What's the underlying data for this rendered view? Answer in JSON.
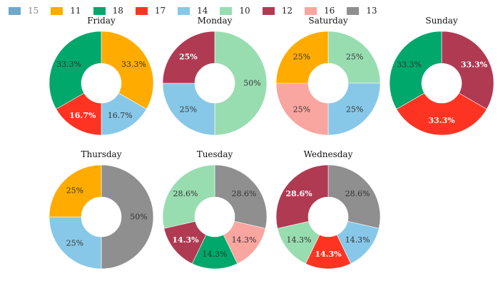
{
  "legend": [
    {
      "label": "15",
      "color": "#6fa8c8",
      "dimmed": true
    },
    {
      "label": "11",
      "color": "#ffab00",
      "dimmed": false
    },
    {
      "label": "18",
      "color": "#00a86b",
      "dimmed": false
    },
    {
      "label": "17",
      "color": "#ff3322",
      "dimmed": false
    },
    {
      "label": "14",
      "color": "#87c8e8",
      "dimmed": false
    },
    {
      "label": "10",
      "color": "#98ddb0",
      "dimmed": false
    },
    {
      "label": "12",
      "color": "#b03a52",
      "dimmed": false
    },
    {
      "label": "16",
      "color": "#f9a5a0",
      "dimmed": false
    },
    {
      "label": "13",
      "color": "#8f8f8f",
      "dimmed": false
    }
  ],
  "chart_data": [
    {
      "type": "pie",
      "donut": true,
      "title": "Friday",
      "slices": [
        {
          "category": "11",
          "value": 33.3,
          "label": "33.3%",
          "bold": false
        },
        {
          "category": "14",
          "value": 16.7,
          "label": "16.7%",
          "bold": false
        },
        {
          "category": "17",
          "value": 16.7,
          "label": "16.7%",
          "bold": true
        },
        {
          "category": "18",
          "value": 33.3,
          "label": "33.3%",
          "bold": false
        }
      ]
    },
    {
      "type": "pie",
      "donut": true,
      "title": "Monday",
      "slices": [
        {
          "category": "10",
          "value": 50,
          "label": "50%",
          "bold": false
        },
        {
          "category": "14",
          "value": 25,
          "label": "25%",
          "bold": false
        },
        {
          "category": "12",
          "value": 25,
          "label": "25%",
          "bold": true
        }
      ]
    },
    {
      "type": "pie",
      "donut": true,
      "title": "Saturday",
      "slices": [
        {
          "category": "10",
          "value": 25,
          "label": "25%",
          "bold": false
        },
        {
          "category": "14",
          "value": 25,
          "label": "25%",
          "bold": false
        },
        {
          "category": "16",
          "value": 25,
          "label": "25%",
          "bold": false
        },
        {
          "category": "11",
          "value": 25,
          "label": "25%",
          "bold": false
        }
      ]
    },
    {
      "type": "pie",
      "donut": true,
      "title": "Sunday",
      "slices": [
        {
          "category": "12",
          "value": 33.3,
          "label": "33.3%",
          "bold": true
        },
        {
          "category": "17",
          "value": 33.3,
          "label": "33.3%",
          "bold": true
        },
        {
          "category": "18",
          "value": 33.3,
          "label": "33.3%",
          "bold": false
        }
      ]
    },
    {
      "type": "pie",
      "donut": true,
      "title": "Thursday",
      "slices": [
        {
          "category": "13",
          "value": 50,
          "label": "50%",
          "bold": false
        },
        {
          "category": "14",
          "value": 25,
          "label": "25%",
          "bold": false
        },
        {
          "category": "11",
          "value": 25,
          "label": "25%",
          "bold": false
        }
      ]
    },
    {
      "type": "pie",
      "donut": true,
      "title": "Tuesday",
      "slices": [
        {
          "category": "13",
          "value": 28.6,
          "label": "28.6%",
          "bold": false
        },
        {
          "category": "16",
          "value": 14.3,
          "label": "14.3%",
          "bold": false
        },
        {
          "category": "18",
          "value": 14.3,
          "label": "14.3%",
          "bold": false
        },
        {
          "category": "12",
          "value": 14.3,
          "label": "14.3%",
          "bold": true
        },
        {
          "category": "10",
          "value": 28.6,
          "label": "28.6%",
          "bold": false
        }
      ]
    },
    {
      "type": "pie",
      "donut": true,
      "title": "Wednesday",
      "slices": [
        {
          "category": "13",
          "value": 28.6,
          "label": "28.6%",
          "bold": false
        },
        {
          "category": "14",
          "value": 14.3,
          "label": "14.3%",
          "bold": false
        },
        {
          "category": "17",
          "value": 14.3,
          "label": "14.3%",
          "bold": true
        },
        {
          "category": "10",
          "value": 14.3,
          "label": "14.3%",
          "bold": false
        },
        {
          "category": "12",
          "value": 28.6,
          "label": "28.6%",
          "bold": true
        }
      ]
    }
  ]
}
